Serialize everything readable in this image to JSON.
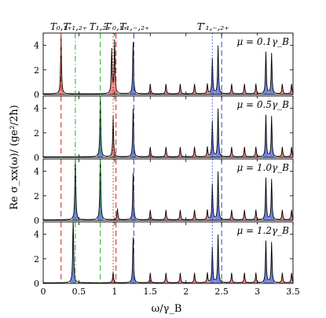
{
  "chart_data": {
    "type": "area",
    "xlabel": "ω/γ_B",
    "ylabel": "Re σ_xx(ω)/ (ge²/2ħ)",
    "xlim": [
      0,
      3.5
    ],
    "ylim": [
      0,
      5
    ],
    "x_ticks": [
      "0",
      "0.5",
      "1",
      "1.5",
      "2",
      "2.5",
      "3",
      "3.5"
    ],
    "x_tick_values": [
      0,
      0.5,
      1,
      1.5,
      2,
      2.5,
      3,
      3.5
    ],
    "y_ticks": [
      "0",
      "2",
      "4"
    ],
    "y_tick_values": [
      0,
      2,
      4
    ],
    "colors": {
      "red_fill": "#f08080",
      "blue_fill": "#6a7fe0",
      "blue_line": "#3347c8",
      "red_line": "#d02020",
      "green_line": "#20b020",
      "curve": "#000000"
    },
    "top_annotations": [
      {
        "text": "T₀,₁₊",
        "x": 0.25
      },
      {
        "text": "T′₁,₂₊",
        "x": 0.45
      },
      {
        "text": "T₁,₂₊",
        "x": 0.8
      },
      {
        "text": "T′₀,₁₊",
        "x": 1.02
      },
      {
        "text": "T₁,₋,₂₊",
        "x": 1.28
      },
      {
        "text": "T′₁,₋,₂₊",
        "x": 2.38
      }
    ],
    "reference_lines": [
      {
        "x": 0.25,
        "color": "red",
        "style": "dashed"
      },
      {
        "x": 0.45,
        "color": "green",
        "style": "dashdot"
      },
      {
        "x": 0.8,
        "color": "green",
        "style": "dashed"
      },
      {
        "x": 0.98,
        "color": "red",
        "style": "dotted"
      },
      {
        "x": 1.02,
        "color": "red",
        "style": "dashed"
      },
      {
        "x": 1.27,
        "color": "blue",
        "style": "dashed"
      },
      {
        "x": 2.37,
        "color": "blue",
        "style": "dotted"
      },
      {
        "x": 2.5,
        "color": "blue",
        "style": "dashed"
      }
    ],
    "panels": [
      {
        "label": "μ = 0.1γ_B",
        "peaks": [
          {
            "x": 0.25,
            "h": 4.7,
            "c": "red"
          },
          {
            "x": 0.96,
            "h": 3.6,
            "c": "red"
          },
          {
            "x": 1.0,
            "h": 4.3,
            "c": "red"
          },
          {
            "x": 1.26,
            "h": 4.2,
            "c": "blue"
          },
          {
            "x": 1.5,
            "h": 0.8,
            "c": "red"
          },
          {
            "x": 1.72,
            "h": 0.8,
            "c": "red"
          },
          {
            "x": 1.92,
            "h": 0.8,
            "c": "red"
          },
          {
            "x": 2.12,
            "h": 0.8,
            "c": "red"
          },
          {
            "x": 2.3,
            "h": 0.8,
            "c": "red"
          },
          {
            "x": 2.37,
            "h": 2.9,
            "c": "blue"
          },
          {
            "x": 2.45,
            "h": 3.9,
            "c": "blue"
          },
          {
            "x": 2.64,
            "h": 0.8,
            "c": "red"
          },
          {
            "x": 2.82,
            "h": 0.8,
            "c": "red"
          },
          {
            "x": 2.98,
            "h": 0.8,
            "c": "red"
          },
          {
            "x": 3.12,
            "h": 3.4,
            "c": "blue"
          },
          {
            "x": 3.2,
            "h": 3.3,
            "c": "blue"
          },
          {
            "x": 3.35,
            "h": 0.8,
            "c": "red"
          },
          {
            "x": 3.48,
            "h": 0.8,
            "c": "red"
          }
        ]
      },
      {
        "label": "μ = 0.5γ_B",
        "peaks": [
          {
            "x": 0.8,
            "h": 4.9,
            "c": "blue"
          },
          {
            "x": 0.98,
            "h": 3.3,
            "c": "red"
          },
          {
            "x": 1.26,
            "h": 3.9,
            "c": "blue"
          },
          {
            "x": 1.5,
            "h": 0.8,
            "c": "red"
          },
          {
            "x": 1.72,
            "h": 0.8,
            "c": "red"
          },
          {
            "x": 1.92,
            "h": 0.8,
            "c": "red"
          },
          {
            "x": 2.12,
            "h": 0.8,
            "c": "red"
          },
          {
            "x": 2.3,
            "h": 0.8,
            "c": "red"
          },
          {
            "x": 2.37,
            "h": 2.9,
            "c": "blue"
          },
          {
            "x": 2.45,
            "h": 3.9,
            "c": "blue"
          },
          {
            "x": 2.64,
            "h": 0.8,
            "c": "red"
          },
          {
            "x": 2.82,
            "h": 0.8,
            "c": "red"
          },
          {
            "x": 2.98,
            "h": 0.8,
            "c": "red"
          },
          {
            "x": 3.12,
            "h": 3.4,
            "c": "blue"
          },
          {
            "x": 3.2,
            "h": 3.3,
            "c": "blue"
          },
          {
            "x": 3.35,
            "h": 0.8,
            "c": "red"
          },
          {
            "x": 3.48,
            "h": 0.8,
            "c": "red"
          }
        ]
      },
      {
        "label": "μ = 1.0γ_B",
        "peaks": [
          {
            "x": 0.45,
            "h": 5.6,
            "c": "blue"
          },
          {
            "x": 0.8,
            "h": 5.6,
            "c": "blue"
          },
          {
            "x": 1.04,
            "h": 0.9,
            "c": "red"
          },
          {
            "x": 1.26,
            "h": 3.8,
            "c": "blue"
          },
          {
            "x": 1.5,
            "h": 0.8,
            "c": "red"
          },
          {
            "x": 1.72,
            "h": 0.8,
            "c": "red"
          },
          {
            "x": 1.92,
            "h": 0.8,
            "c": "red"
          },
          {
            "x": 2.12,
            "h": 0.8,
            "c": "red"
          },
          {
            "x": 2.3,
            "h": 0.8,
            "c": "red"
          },
          {
            "x": 2.37,
            "h": 2.9,
            "c": "blue"
          },
          {
            "x": 2.45,
            "h": 3.9,
            "c": "blue"
          },
          {
            "x": 2.64,
            "h": 0.8,
            "c": "red"
          },
          {
            "x": 2.82,
            "h": 0.8,
            "c": "red"
          },
          {
            "x": 2.98,
            "h": 0.8,
            "c": "red"
          },
          {
            "x": 3.12,
            "h": 3.4,
            "c": "blue"
          },
          {
            "x": 3.2,
            "h": 3.3,
            "c": "blue"
          },
          {
            "x": 3.35,
            "h": 0.8,
            "c": "red"
          },
          {
            "x": 3.48,
            "h": 0.8,
            "c": "red"
          }
        ]
      },
      {
        "label": "μ = 1.2γ_B",
        "peaks": [
          {
            "x": 0.42,
            "h": 5.6,
            "c": "blue"
          },
          {
            "x": 0.98,
            "h": 0.9,
            "c": "red"
          },
          {
            "x": 1.26,
            "h": 3.7,
            "c": "blue"
          },
          {
            "x": 1.5,
            "h": 0.8,
            "c": "red"
          },
          {
            "x": 1.72,
            "h": 0.8,
            "c": "red"
          },
          {
            "x": 1.92,
            "h": 0.8,
            "c": "red"
          },
          {
            "x": 2.12,
            "h": 0.8,
            "c": "red"
          },
          {
            "x": 2.3,
            "h": 0.8,
            "c": "red"
          },
          {
            "x": 2.37,
            "h": 2.9,
            "c": "blue"
          },
          {
            "x": 2.45,
            "h": 3.9,
            "c": "blue"
          },
          {
            "x": 2.64,
            "h": 0.8,
            "c": "red"
          },
          {
            "x": 2.82,
            "h": 0.8,
            "c": "red"
          },
          {
            "x": 2.98,
            "h": 0.8,
            "c": "red"
          },
          {
            "x": 3.12,
            "h": 3.4,
            "c": "blue"
          },
          {
            "x": 3.2,
            "h": 3.3,
            "c": "blue"
          },
          {
            "x": 3.35,
            "h": 0.8,
            "c": "red"
          },
          {
            "x": 3.48,
            "h": 0.8,
            "c": "red"
          }
        ]
      }
    ]
  }
}
